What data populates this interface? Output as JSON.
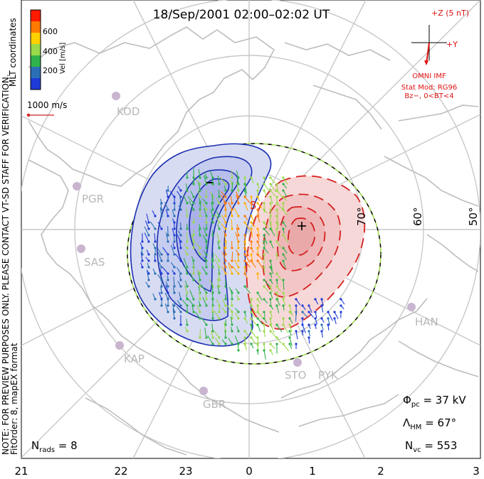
{
  "title": "18/Sep/2001 02:00–02:02 UT",
  "colorbar": {
    "label": "Vel [m/s]",
    "ticks": [
      "600",
      "400",
      "200"
    ],
    "colors": [
      "#ff1a00",
      "#ff7a00",
      "#ffd000",
      "#9ad94a",
      "#2fb24a",
      "#2a6fb5",
      "#1e3bd8"
    ]
  },
  "side_notes": {
    "mlt": "MLT coordinates",
    "preview": "NOTE: FOR PREVIEW PURPOSES ONLY. PLEASE CONTACT VT-SD STAFF FOR VERIFICATION.",
    "fit": "FitOrder: 8, mapEX format"
  },
  "scale": {
    "label": "1000 m/s"
  },
  "imf": {
    "z_label": "+Z (5 nT)",
    "y_label": "+Y",
    "omni": "OMNI IMF",
    "stat_mod": "Stat Mod: RG96",
    "condition": "Bz−, 0<BT<4"
  },
  "stations": [
    "KOD",
    "PGR",
    "SAS",
    "KAP",
    "GBR",
    "STO",
    "PYK",
    "HAN"
  ],
  "lat_labels": [
    "70°",
    "60°",
    "50°"
  ],
  "mlt_labels": [
    "21",
    "22",
    "23",
    "0",
    "1",
    "2",
    "3"
  ],
  "stats": {
    "pcp": "37 kV",
    "hm": "67°",
    "nvc": "553",
    "nrads": "8"
  },
  "map_colors": {
    "land": "#c8c8c8",
    "grid": "#c8c8c8",
    "neg_contour": "#1a2fb0",
    "neg_fill": "#d8dcf2",
    "pos_contour": "#d42020",
    "pos_fill": "#f7d8d8",
    "imf": "#e01010"
  }
}
